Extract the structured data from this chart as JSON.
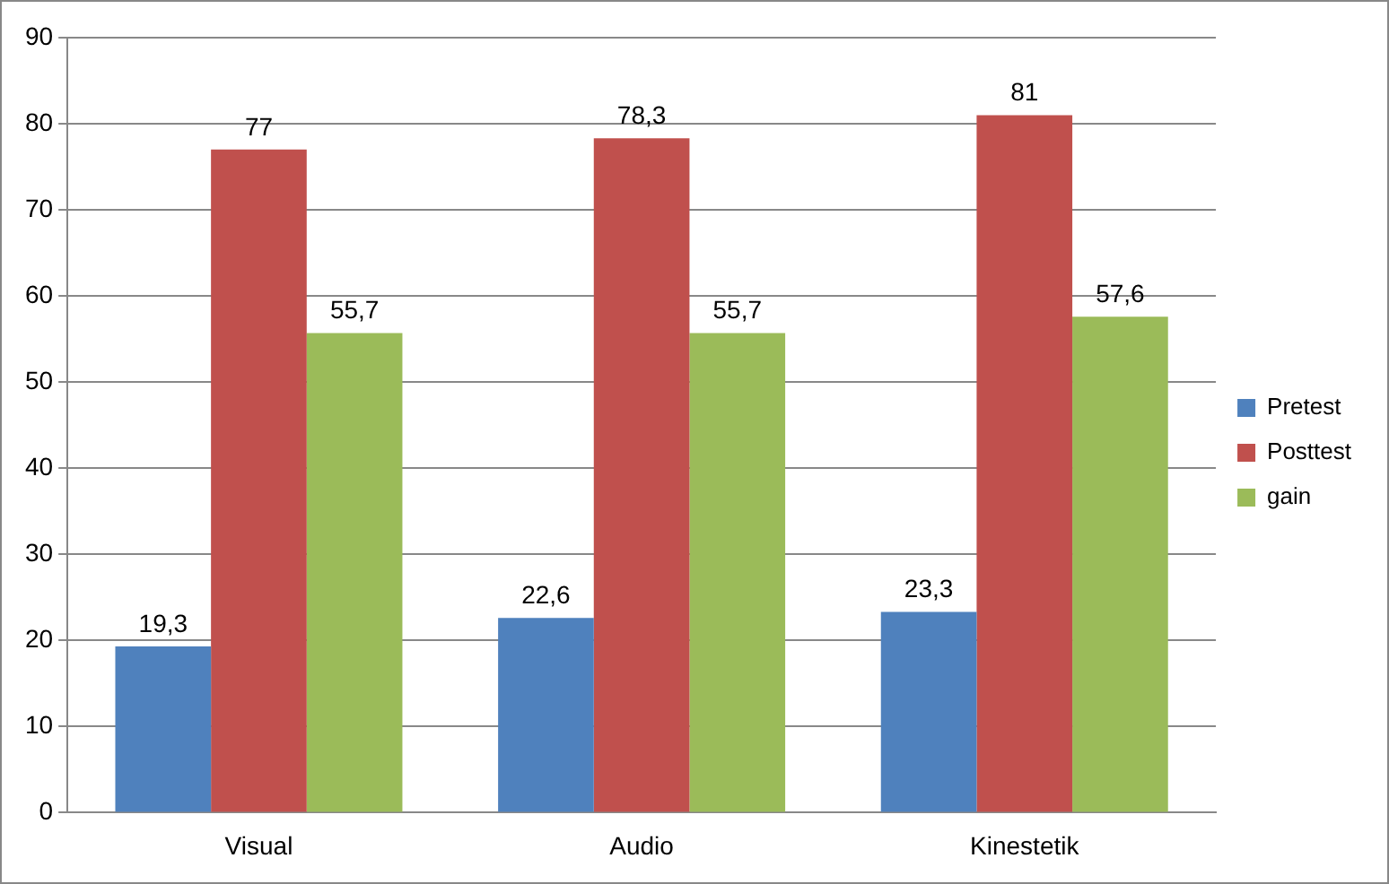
{
  "chart_data": {
    "type": "bar",
    "categories": [
      "Visual",
      "Audio",
      "Kinestetik"
    ],
    "series": [
      {
        "name": "Pretest",
        "color": "#4f81bd",
        "values": [
          19.3,
          22.6,
          23.3
        ],
        "value_labels": [
          "19,3",
          "22,6",
          "23,3"
        ]
      },
      {
        "name": "Posttest",
        "color": "#c0504d",
        "values": [
          77,
          78.3,
          81
        ],
        "value_labels": [
          "77",
          "78,3",
          "81"
        ]
      },
      {
        "name": "gain",
        "color": "#9bbb59",
        "values": [
          55.7,
          55.7,
          57.6
        ],
        "value_labels": [
          "55,7",
          "55,7",
          "57,6"
        ]
      }
    ],
    "ylim": [
      0,
      90
    ],
    "yticks": [
      0,
      10,
      20,
      30,
      40,
      50,
      60,
      70,
      80,
      90
    ],
    "grid": "y",
    "legend": "right"
  }
}
